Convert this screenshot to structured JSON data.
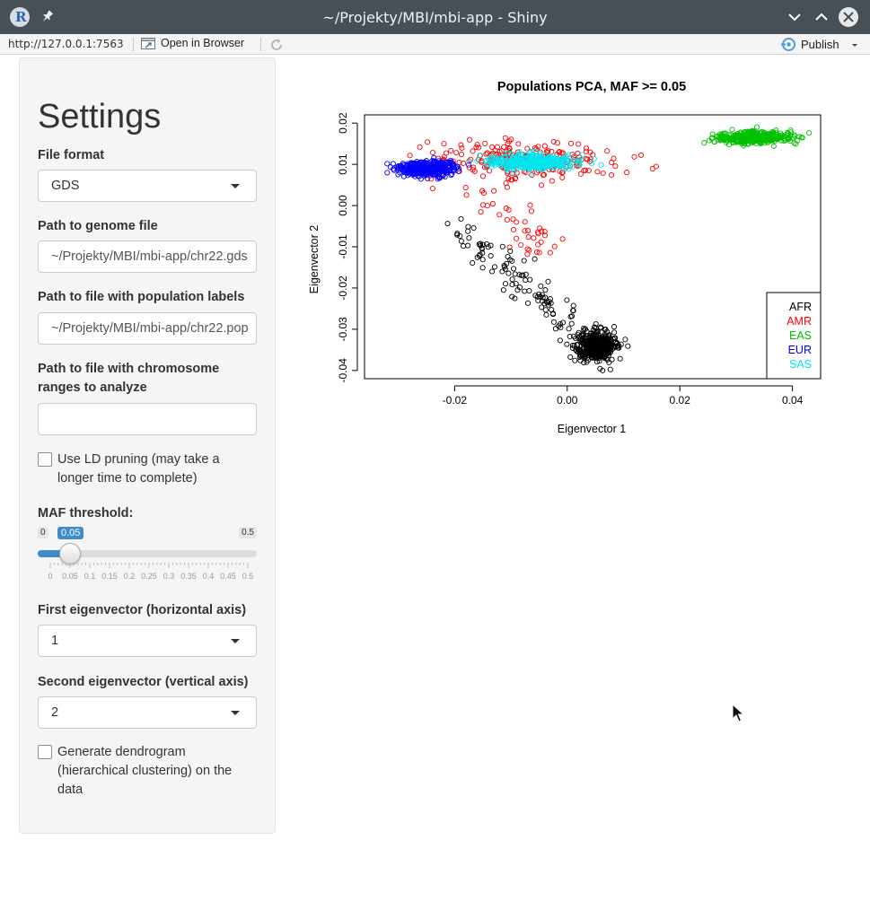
{
  "window": {
    "title": "~/Projekty/MBI/mbi-app - Shiny"
  },
  "viewer": {
    "url": "http://127.0.0.1:7563",
    "open_in_browser": "Open in Browser",
    "publish": "Publish"
  },
  "sidebar": {
    "heading": "Settings",
    "file_format": {
      "label": "File format",
      "value": "GDS"
    },
    "genome_path": {
      "label": "Path to genome file",
      "value": "~/Projekty/MBI/mbi-app/chr22.gds"
    },
    "population_path": {
      "label": "Path to file with population labels",
      "value": "~/Projekty/MBI/mbi-app/chr22.pop"
    },
    "ranges_path": {
      "label": "Path to file with chromosome ranges to analyze",
      "value": ""
    },
    "ld_pruning": {
      "label": "Use LD pruning (may take a longer time to complete)",
      "checked": false
    },
    "maf": {
      "label": "MAF threshold:",
      "min": 0,
      "max": 0.5,
      "value": 0.05,
      "min_label": "0",
      "max_label": "0.5",
      "value_label": "0.05",
      "tick_labels": [
        "0",
        "0.05",
        "0.1",
        "0.15",
        "0.2",
        "0.25",
        "0.3",
        "0.35",
        "0.4",
        "0.45",
        "0.5"
      ]
    },
    "first_eigenvector": {
      "label": "First eigenvector (horizontal axis)",
      "value": "1"
    },
    "second_eigenvector": {
      "label": "Second eigenvector (vertical axis)",
      "value": "2"
    },
    "dendrogram": {
      "label": "Generate dendrogram (hierarchical clustering) on the data",
      "checked": false
    }
  },
  "chart_data": {
    "type": "scatter",
    "title": "Populations PCA, MAF >= 0.05",
    "xlabel": "Eigenvector 1",
    "ylabel": "Eigenvector 2",
    "xlim": [
      -0.036,
      0.045
    ],
    "ylim": [
      -0.042,
      0.022
    ],
    "xticks": [
      "-0.02",
      "0.00",
      "0.02",
      "0.04"
    ],
    "xtick_values": [
      -0.02,
      0.0,
      0.02,
      0.04
    ],
    "yticks": [
      "-0.04",
      "-0.03",
      "-0.02",
      "-0.01",
      "0.00",
      "0.01",
      "0.02"
    ],
    "ytick_values": [
      -0.04,
      -0.03,
      -0.02,
      -0.01,
      0.0,
      0.01,
      0.02
    ],
    "legend_position": "bottom-right",
    "series": [
      {
        "name": "AFR",
        "color": "#000000",
        "center": [
          0.005,
          -0.034
        ],
        "spread": [
          0.003,
          0.003
        ],
        "count": 420,
        "tail": {
          "from": [
            -0.02,
            -0.005
          ],
          "to": [
            0.003,
            -0.032
          ],
          "count": 110,
          "jitter": 0.0035
        }
      },
      {
        "name": "AMR",
        "color": "#ff0000",
        "center": [
          -0.008,
          0.011
        ],
        "spread": [
          0.014,
          0.004
        ],
        "count": 250,
        "tail": {
          "from": [
            -0.018,
            0.003
          ],
          "to": [
            -0.003,
            -0.01
          ],
          "count": 40,
          "jitter": 0.004
        }
      },
      {
        "name": "EAS",
        "color": "#00c000",
        "center": [
          0.033,
          0.0165
        ],
        "spread": [
          0.005,
          0.0012
        ],
        "count": 420
      },
      {
        "name": "EUR",
        "color": "#0000ff",
        "center": [
          -0.025,
          0.009
        ],
        "spread": [
          0.004,
          0.0015
        ],
        "count": 420
      },
      {
        "name": "SAS",
        "color": "#00e5ee",
        "center": [
          -0.006,
          0.0105
        ],
        "spread": [
          0.006,
          0.0016
        ],
        "count": 380
      }
    ]
  }
}
